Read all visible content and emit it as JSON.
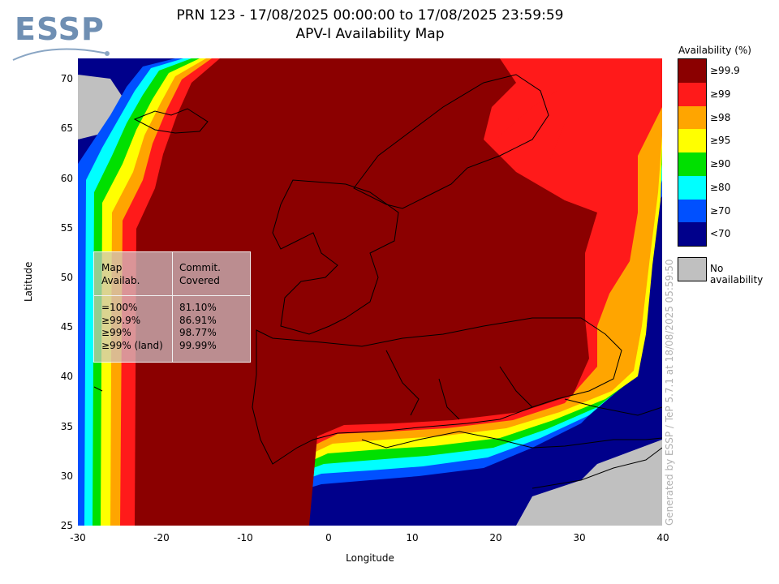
{
  "logo": {
    "text": "ESSP"
  },
  "title": {
    "line1": "PRN 123 - 17/08/2025 00:00:00 to 17/08/2025 23:59:59",
    "line2": "APV-I Availability Map"
  },
  "axes": {
    "xlabel": "Longitude",
    "ylabel": "Latitude",
    "xticks": [
      "-30",
      "-20",
      "-10",
      "0",
      "10",
      "20",
      "30",
      "40"
    ],
    "yticks": [
      "70",
      "65",
      "60",
      "55",
      "50",
      "45",
      "40",
      "35",
      "30",
      "25"
    ],
    "xlim": [
      -30,
      40
    ],
    "ylim": [
      25,
      72
    ]
  },
  "stats_table": {
    "col1_header": [
      "Map",
      "Availab."
    ],
    "col2_header": [
      "Commit.",
      "Covered"
    ],
    "rows": [
      {
        "level": "=100%",
        "covered": "81.10%"
      },
      {
        "level": "≥99.9%",
        "covered": "86.91%"
      },
      {
        "level": "≥99%",
        "covered": "98.77%"
      },
      {
        "level": "≥99% (land)",
        "covered": "99.99%"
      }
    ]
  },
  "legend": {
    "title": "Availability (%)",
    "items": [
      {
        "label": "≥99.9",
        "color": "#8b0000"
      },
      {
        "label": "≥99",
        "color": "#ff1a1a"
      },
      {
        "label": "≥98",
        "color": "#ffa500"
      },
      {
        "label": "≥95",
        "color": "#ffff00"
      },
      {
        "label": "≥90",
        "color": "#00e000"
      },
      {
        "label": "≥80",
        "color": "#00ffff"
      },
      {
        "label": "≥70",
        "color": "#0050ff"
      },
      {
        "label": "<70",
        "color": "#00008b"
      }
    ],
    "no_availability": {
      "label": "No availability",
      "color": "#c0c0c0"
    }
  },
  "generated": "Generated by ESSP / TeP 5.7.1 at 18/08/2025 05:59:50"
}
